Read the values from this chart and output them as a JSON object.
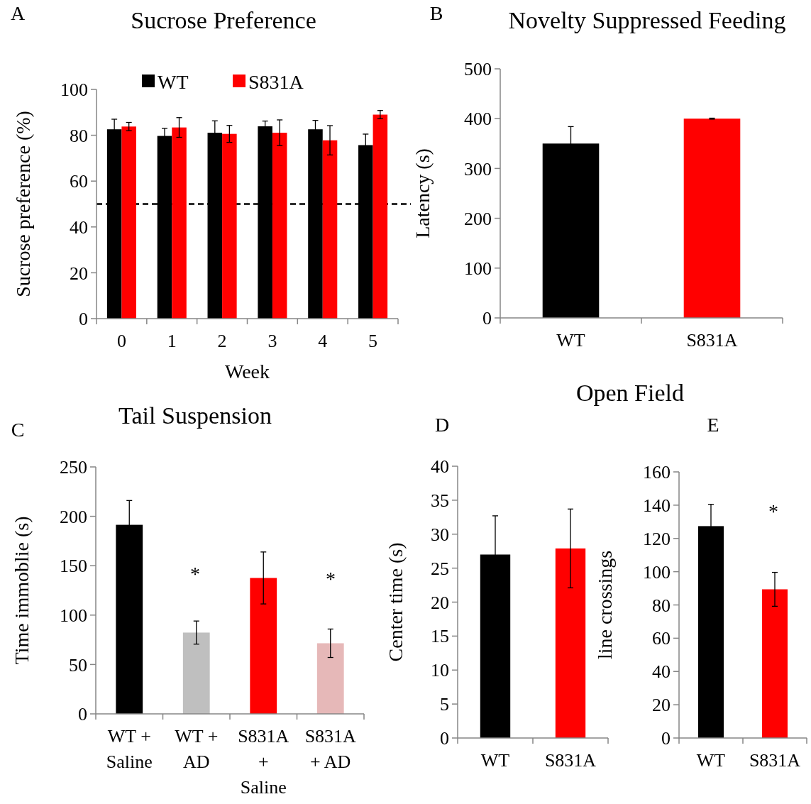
{
  "chart_data": [
    {
      "type": "bar",
      "title": "Sucrose Preference",
      "xlabel": "Week",
      "ylabel": "Sucrose preference (%)",
      "categories": [
        "0",
        "1",
        "2",
        "3",
        "4",
        "5"
      ],
      "series": [
        {
          "name": "WT",
          "color": "#000000",
          "values": [
            82.6,
            79.7,
            81.1,
            83.9,
            82.6,
            75.7
          ],
          "errors": [
            4.4,
            3.3,
            5.2,
            2.3,
            3.9,
            4.8
          ]
        },
        {
          "name": "S831A",
          "color": "#ff0000",
          "values": [
            83.8,
            83.4,
            80.6,
            81.1,
            77.8,
            89.0
          ],
          "errors": [
            1.8,
            4.3,
            3.7,
            5.6,
            6.4,
            1.8
          ]
        }
      ],
      "ylim": [
        0,
        100
      ],
      "yticks": [
        0,
        20,
        40,
        60,
        80,
        100
      ],
      "legend": "top",
      "grid": false,
      "ref_lines": [
        {
          "axis": "y",
          "value": 50,
          "color": "#000000",
          "line_style": "dashed"
        }
      ],
      "annotations": [
        "A"
      ]
    },
    {
      "type": "bar",
      "title": "Novelty Suppressed Feeding",
      "ylabel": "Latency (s)",
      "categories": [
        "WT",
        "S831A"
      ],
      "values": [
        350,
        400
      ],
      "colors": [
        "#000000",
        "#ff0000"
      ],
      "errors": [
        34,
        1
      ],
      "ylim": [
        0,
        500
      ],
      "yticks": [
        0,
        100,
        200,
        300,
        400,
        500
      ],
      "grid": false,
      "annotations": [
        "B"
      ]
    },
    {
      "type": "bar",
      "title": "Tail Suspension",
      "ylabel": "Time immoblie (s)",
      "categories": [
        "WT + Saline",
        "WT + AD",
        "S831A + Saline",
        "S831A + AD"
      ],
      "values": [
        191.4,
        82.3,
        137.6,
        71.5
      ],
      "colors": [
        "#000000",
        "#bfbfbf",
        "#ff0000",
        "#e6b8b8"
      ],
      "errors": [
        24.6,
        11.7,
        26.3,
        14.4
      ],
      "ylim": [
        0,
        250
      ],
      "yticks": [
        0,
        50,
        100,
        150,
        200,
        250
      ],
      "grid": false,
      "annotations": [
        "C",
        "*",
        "*"
      ]
    },
    {
      "type": "bar",
      "title": "Open Field",
      "ylabel": "Center time (s)",
      "categories": [
        "WT",
        "S831A"
      ],
      "values": [
        27.0,
        27.9
      ],
      "colors": [
        "#000000",
        "#ff0000"
      ],
      "errors": [
        5.7,
        5.8
      ],
      "ylim": [
        0,
        40
      ],
      "yticks": [
        0,
        5,
        10,
        15,
        20,
        25,
        30,
        35,
        40
      ],
      "grid": false,
      "annotations": [
        "D"
      ]
    },
    {
      "type": "bar",
      "ylabel": "line crossings",
      "categories": [
        "WT",
        "S831A"
      ],
      "values": [
        127.4,
        89.4
      ],
      "colors": [
        "#000000",
        "#ff0000"
      ],
      "errors": [
        13.1,
        10.2
      ],
      "ylim": [
        0,
        160
      ],
      "yticks": [
        0,
        20,
        40,
        60,
        80,
        100,
        120,
        140,
        160
      ],
      "grid": false,
      "annotations": [
        "E",
        "*"
      ]
    }
  ]
}
